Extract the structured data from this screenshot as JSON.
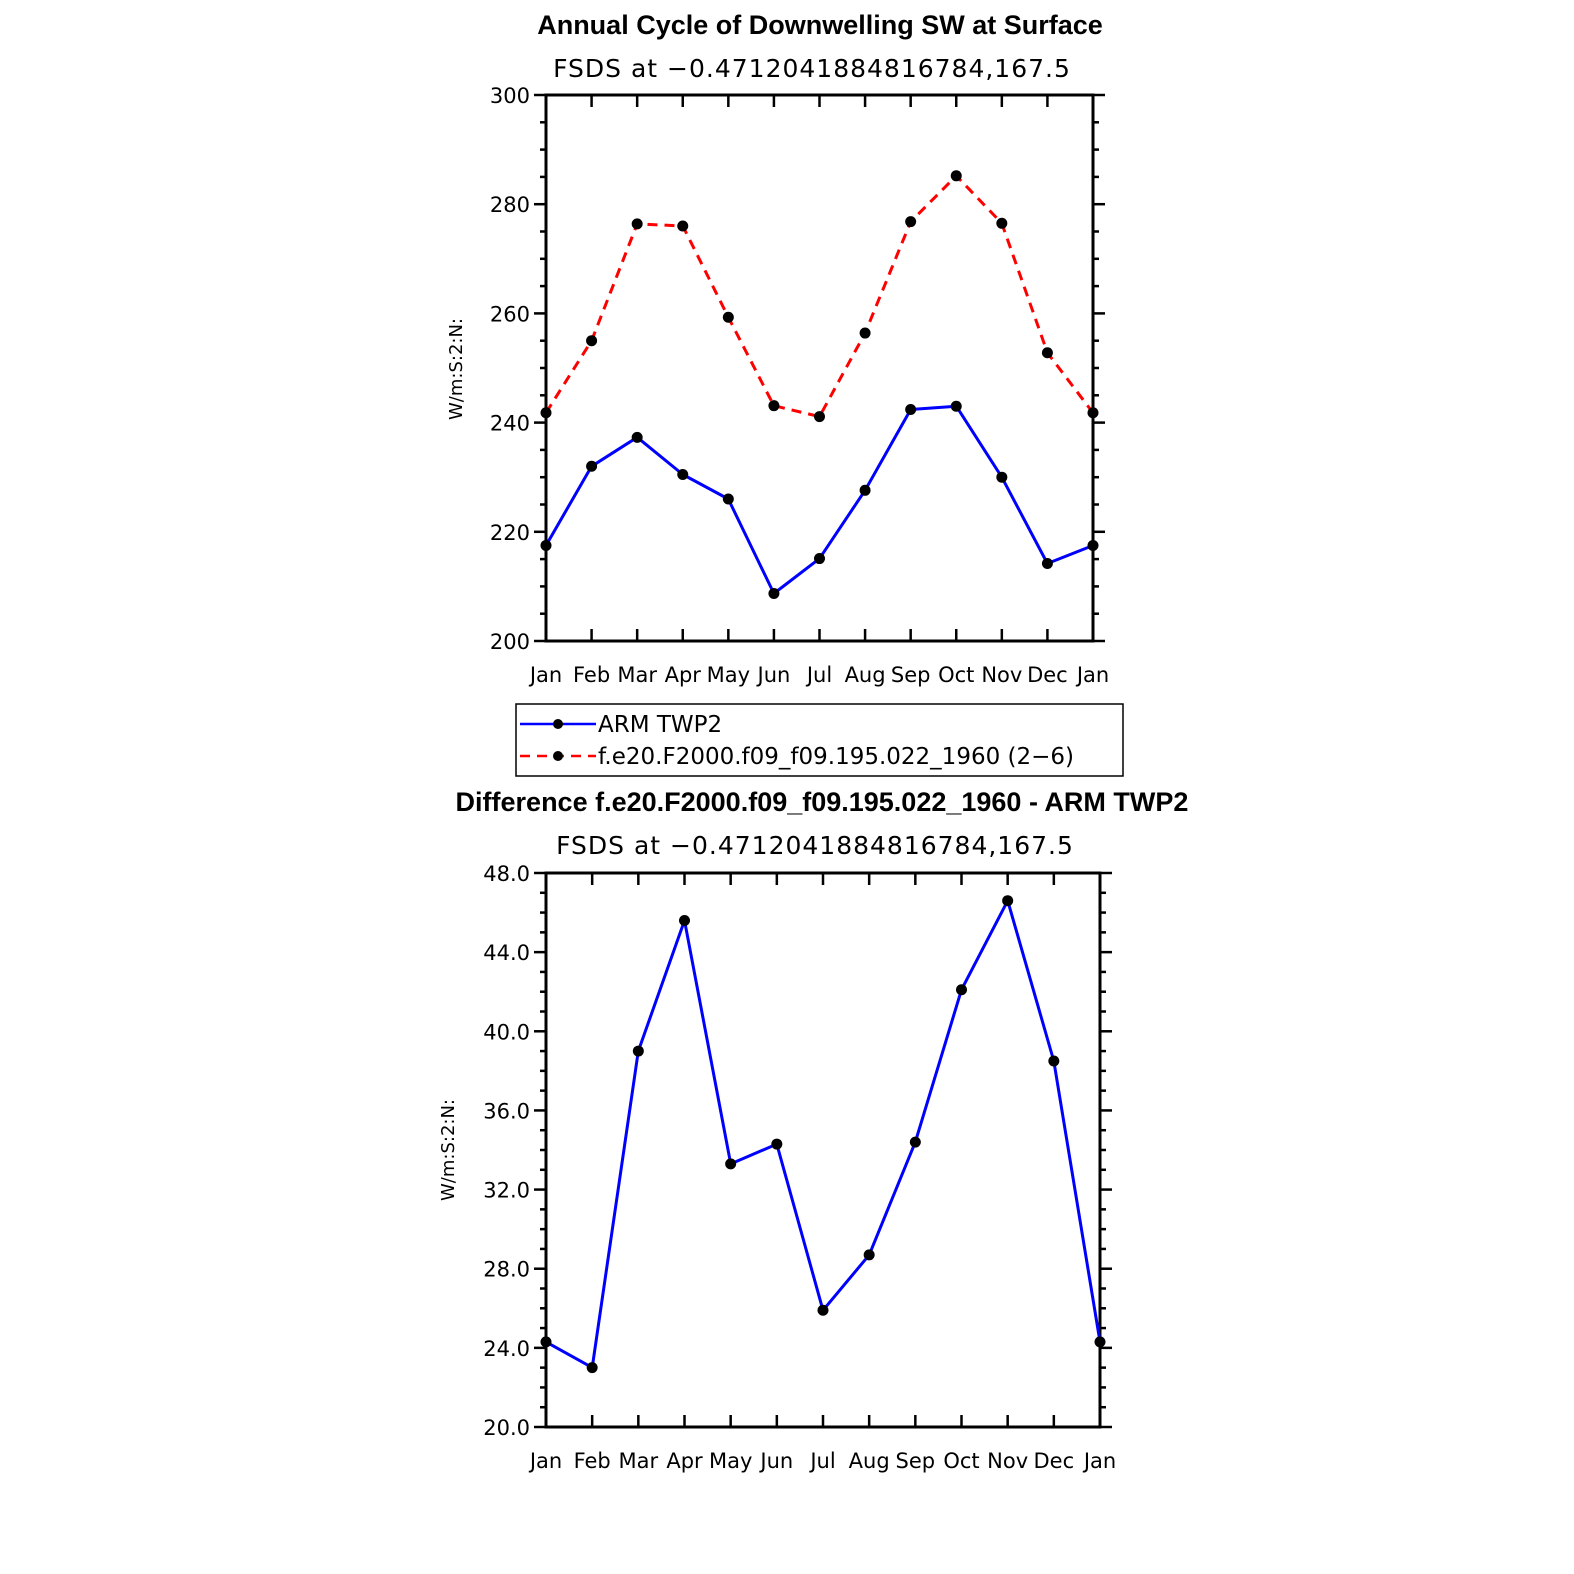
{
  "chart_data": [
    {
      "type": "line",
      "title": "Annual Cycle of Downwelling SW at Surface",
      "subtitle": "FSDS at −0.4712041884816784,167.5",
      "xlabel": "",
      "ylabel": "W/m:S:2:N:",
      "categories": [
        "Jan",
        "Feb",
        "Mar",
        "Apr",
        "May",
        "Jun",
        "Jul",
        "Aug",
        "Sep",
        "Oct",
        "Nov",
        "Dec",
        "Jan"
      ],
      "ylim": [
        200,
        300
      ],
      "yticks": [
        "200",
        "220",
        "240",
        "260",
        "280",
        "300"
      ],
      "series": [
        {
          "name": "ARM TWP2",
          "color": "#0000ff",
          "dash": "solid",
          "values": [
            217.5,
            232.0,
            237.3,
            230.5,
            226.0,
            208.7,
            215.1,
            227.6,
            242.4,
            243.0,
            230.0,
            214.2,
            217.5
          ]
        },
        {
          "name": "f.e20.F2000.f09_f09.195.022_1960 (2−6)",
          "color": "#ff0000",
          "dash": "dashed",
          "values": [
            241.8,
            255.0,
            276.4,
            276.0,
            259.3,
            243.1,
            241.1,
            256.4,
            276.8,
            285.2,
            276.5,
            252.8,
            241.8
          ]
        }
      ],
      "legend": "below"
    },
    {
      "type": "line",
      "title": "Difference f.e20.F2000.f09_f09.195.022_1960 - ARM TWP2",
      "subtitle": "FSDS at −0.4712041884816784,167.5",
      "xlabel": "",
      "ylabel": "W/m:S:2:N:",
      "categories": [
        "Jan",
        "Feb",
        "Mar",
        "Apr",
        "May",
        "Jun",
        "Jul",
        "Aug",
        "Sep",
        "Oct",
        "Nov",
        "Dec",
        "Jan"
      ],
      "ylim": [
        20,
        48
      ],
      "yticks": [
        "20.0",
        "24.0",
        "28.0",
        "32.0",
        "36.0",
        "40.0",
        "44.0",
        "48.0"
      ],
      "series": [
        {
          "color": "#0000ff",
          "dash": "solid",
          "values": [
            24.3,
            23.0,
            39.0,
            45.6,
            33.3,
            34.3,
            25.9,
            28.7,
            34.4,
            42.1,
            46.6,
            38.5,
            24.3
          ]
        }
      ]
    }
  ]
}
